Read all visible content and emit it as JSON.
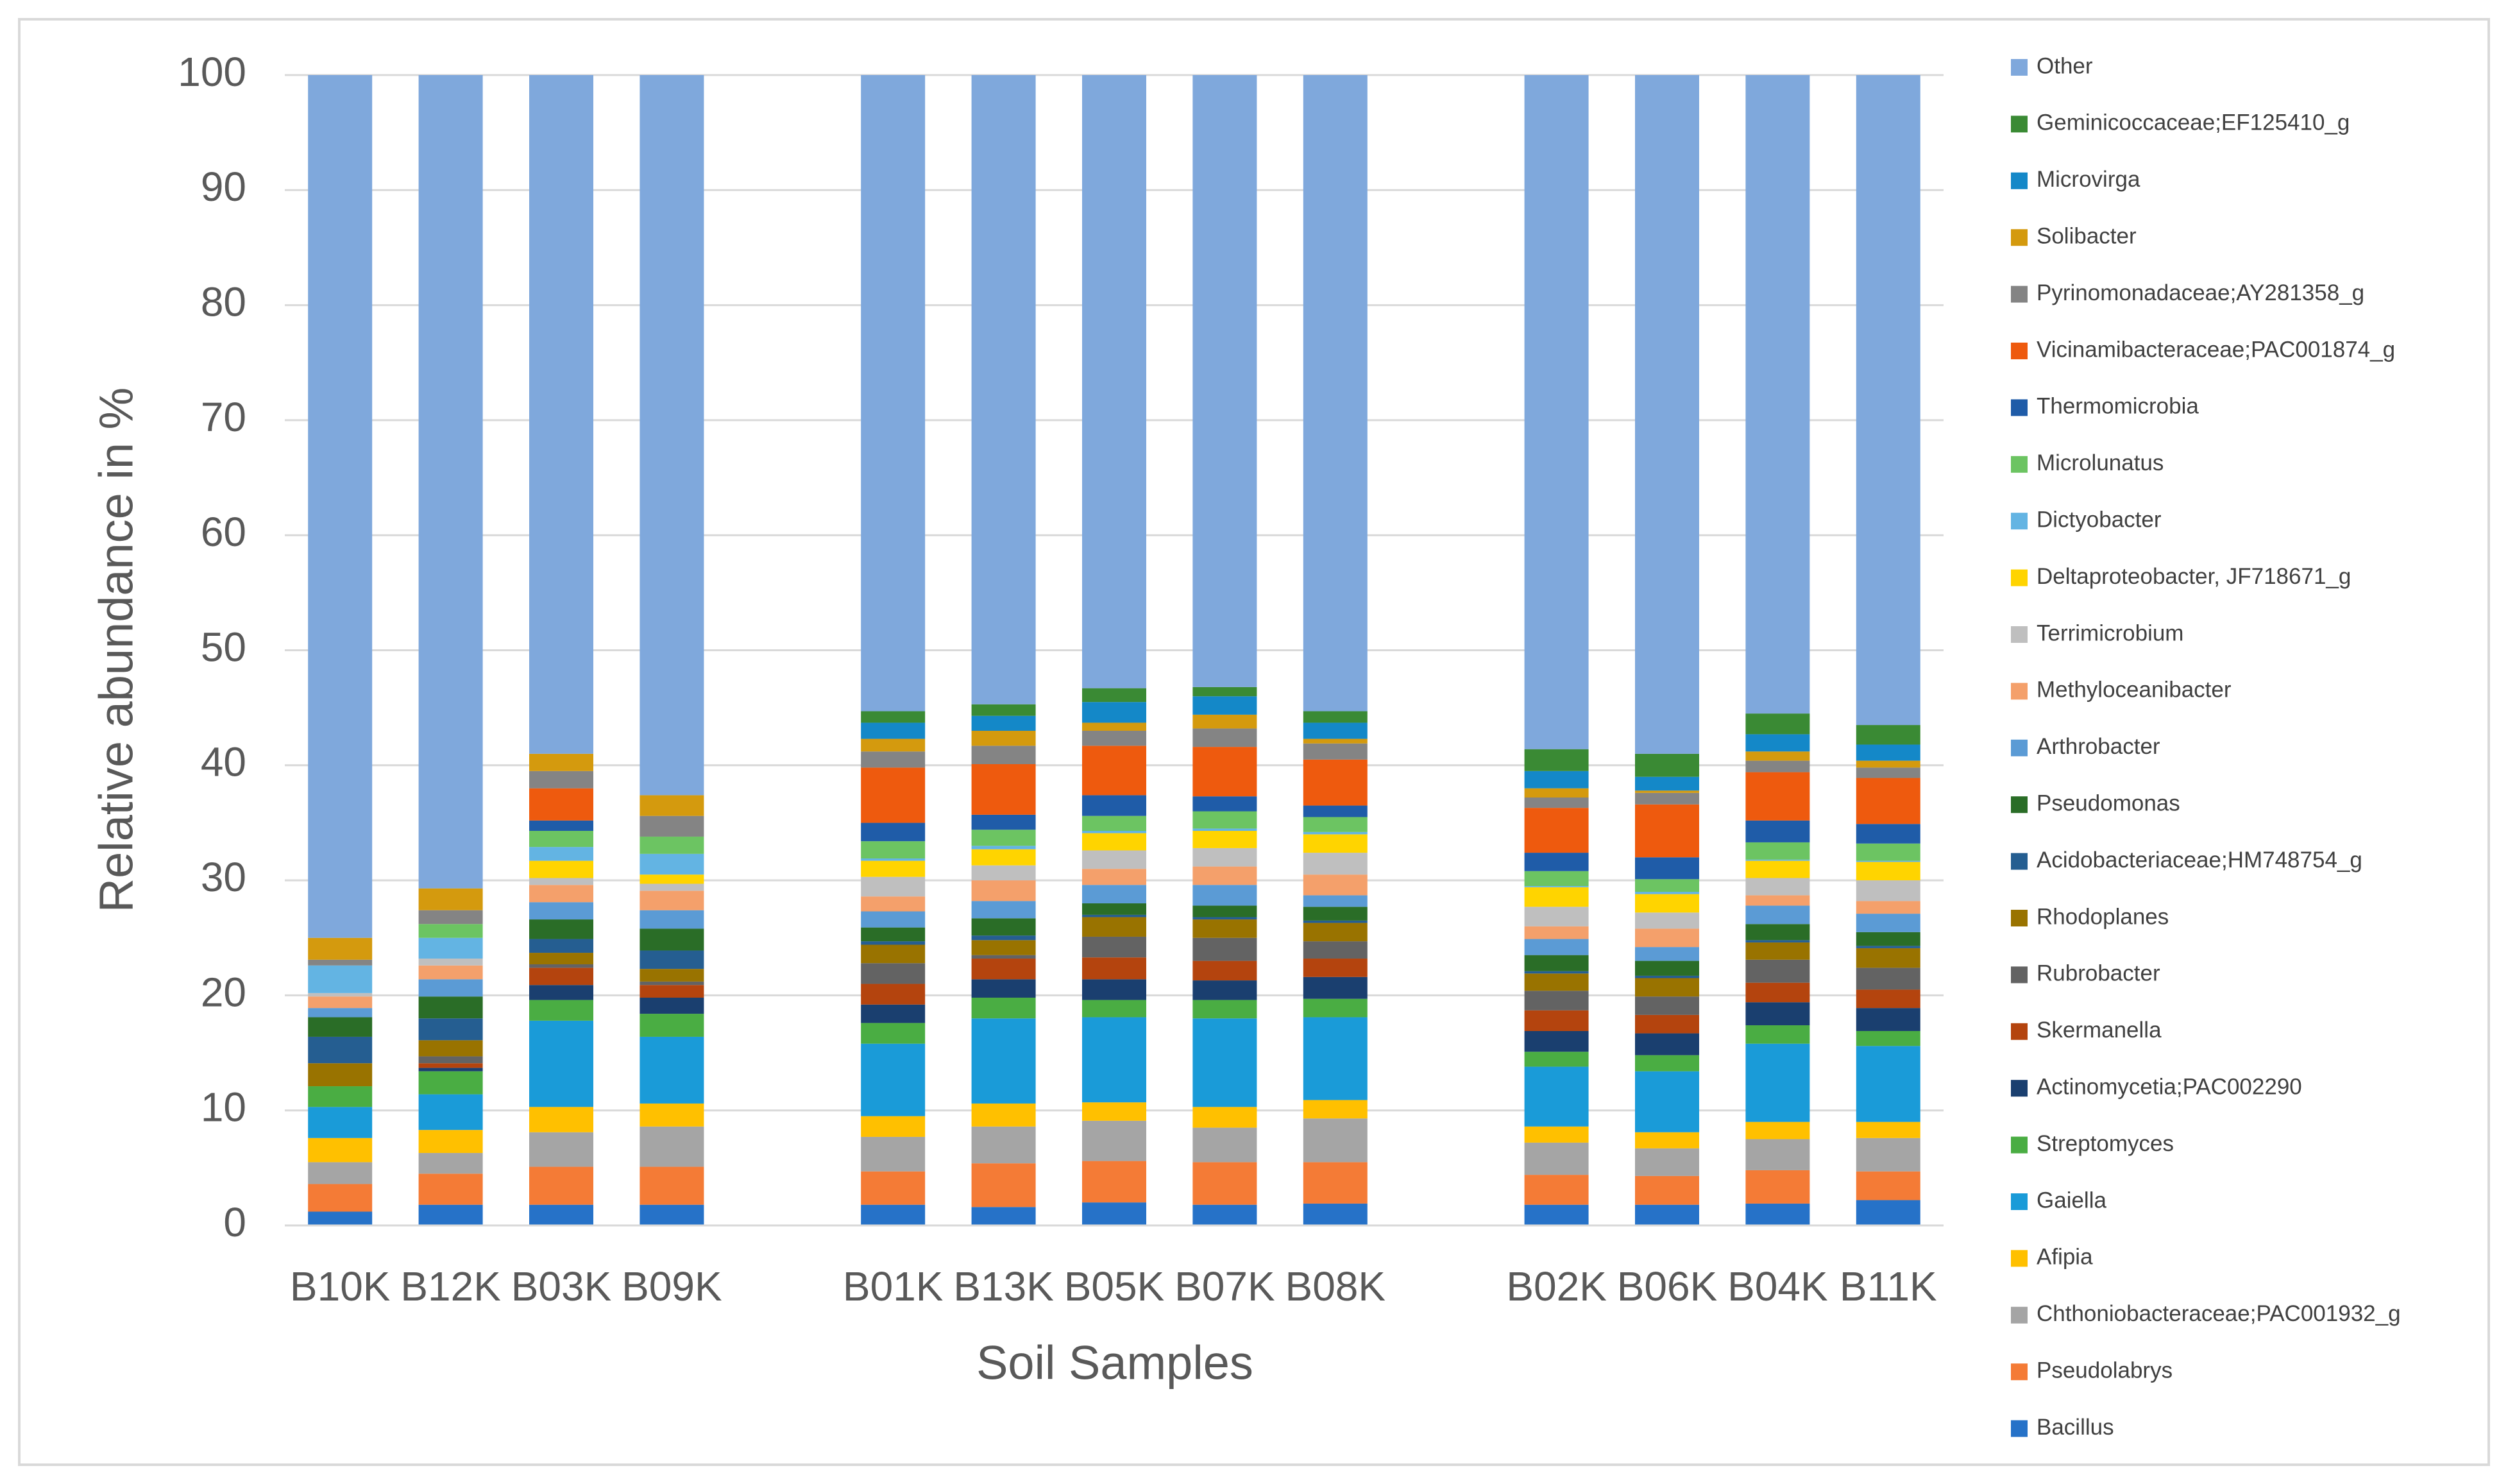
{
  "chart_data": {
    "type": "stacked_bar",
    "x_label": "Soil Samples",
    "y_label": "Relative abundance  in %",
    "categories": [
      "B10K",
      "B12K",
      "B03K",
      "B09K",
      null,
      "B01K",
      "B13K",
      "B05K",
      "B07K",
      "B08K",
      null,
      "B02K",
      "B06K",
      "B04K",
      "B11K"
    ],
    "ylim": [
      0,
      100
    ],
    "yticks": [
      0,
      10,
      20,
      30,
      40,
      50,
      60,
      70,
      80,
      90,
      100
    ],
    "grid": true,
    "legend": "right",
    "series": [
      {
        "name": "Bacillus",
        "color": "#2672c8",
        "values": [
          1.2,
          1.8,
          1.8,
          1.8,
          null,
          1.8,
          1.6,
          2.0,
          1.8,
          1.9,
          null,
          1.8,
          1.8,
          1.9,
          2.2
        ]
      },
      {
        "name": "Pseudolabrys",
        "color": "#f47b36",
        "values": [
          2.4,
          2.7,
          3.3,
          3.3,
          null,
          2.9,
          3.8,
          3.6,
          3.7,
          3.6,
          null,
          2.6,
          2.5,
          2.9,
          2.5
        ]
      },
      {
        "name": "Chthoniobacteraceae;PAC001932_g",
        "color": "#a5a5a5",
        "values": [
          1.9,
          1.8,
          3.0,
          3.5,
          null,
          3.0,
          3.2,
          3.5,
          3.0,
          3.8,
          null,
          2.8,
          2.4,
          2.7,
          2.9
        ]
      },
      {
        "name": "Afipia",
        "color": "#ffc000",
        "values": [
          2.1,
          2.0,
          2.2,
          2.0,
          null,
          1.8,
          2.0,
          1.6,
          1.8,
          1.6,
          null,
          1.4,
          1.4,
          1.5,
          1.4
        ]
      },
      {
        "name": "Gaiella",
        "color": "#1a9bd8",
        "values": [
          2.7,
          3.1,
          7.5,
          5.8,
          null,
          6.3,
          7.4,
          7.4,
          7.7,
          7.2,
          null,
          5.2,
          5.3,
          6.8,
          6.6
        ]
      },
      {
        "name": "Streptomyces",
        "color": "#4aad43",
        "values": [
          1.8,
          2.0,
          1.8,
          2.0,
          null,
          1.8,
          1.8,
          1.5,
          1.6,
          1.6,
          null,
          1.3,
          1.4,
          1.6,
          1.3
        ]
      },
      {
        "name": "Actinomycetia;PAC002290",
        "color": "#1a3f6f",
        "values": [
          0,
          0.3,
          1.3,
          1.4,
          null,
          1.6,
          1.6,
          1.8,
          1.7,
          1.9,
          null,
          1.8,
          1.9,
          2.0,
          2.0
        ]
      },
      {
        "name": "Skermanella",
        "color": "#b4440e",
        "values": [
          0,
          0.4,
          1.5,
          1.1,
          null,
          1.8,
          1.8,
          1.9,
          1.7,
          1.6,
          null,
          1.8,
          1.6,
          1.7,
          1.6
        ]
      },
      {
        "name": "Rubrobacter",
        "color": "#636363",
        "values": [
          0,
          0.6,
          0.3,
          0.3,
          null,
          1.8,
          0.3,
          1.8,
          2.0,
          1.5,
          null,
          1.7,
          1.6,
          2.0,
          1.9
        ]
      },
      {
        "name": "Rhodoplanes",
        "color": "#997300",
        "values": [
          2.0,
          1.4,
          1.0,
          1.1,
          null,
          1.6,
          1.3,
          1.7,
          1.6,
          1.6,
          null,
          1.5,
          1.6,
          1.5,
          1.7
        ]
      },
      {
        "name": "Acidobacteriaceae;HM748754_g",
        "color": "#255e91",
        "values": [
          2.3,
          1.9,
          1.2,
          1.6,
          null,
          0.3,
          0.4,
          0.2,
          0.2,
          0.2,
          null,
          0.2,
          0.2,
          0.2,
          0.2
        ]
      },
      {
        "name": "Pseudomonas",
        "color": "#2a6d27",
        "values": [
          1.7,
          1.9,
          1.7,
          1.9,
          null,
          1.2,
          1.5,
          1.0,
          1.0,
          1.2,
          null,
          1.4,
          1.3,
          1.4,
          1.2
        ]
      },
      {
        "name": "Arthrobacter",
        "color": "#5b9bd5",
        "values": [
          0.8,
          1.5,
          1.5,
          1.6,
          null,
          1.4,
          1.5,
          1.6,
          1.8,
          1.0,
          null,
          1.4,
          1.2,
          1.6,
          1.6
        ]
      },
      {
        "name": "Methyloceanibacter",
        "color": "#f4a06b",
        "values": [
          1.0,
          1.2,
          1.5,
          1.7,
          null,
          1.3,
          1.8,
          1.4,
          1.6,
          1.8,
          null,
          1.1,
          1.6,
          0.9,
          1.1
        ]
      },
      {
        "name": "Terrimicrobium",
        "color": "#bfbfbf",
        "values": [
          0.3,
          0.6,
          0.6,
          0.6,
          null,
          1.7,
          1.3,
          1.6,
          1.6,
          1.9,
          null,
          1.7,
          1.4,
          1.5,
          1.8
        ]
      },
      {
        "name": "Deltaproteobacter, JF718671_g",
        "color": "#ffd400",
        "values": [
          0,
          0,
          1.5,
          0.8,
          null,
          1.4,
          1.4,
          1.5,
          1.5,
          1.6,
          null,
          1.7,
          1.6,
          1.5,
          1.6
        ]
      },
      {
        "name": "Dictyobacter",
        "color": "#63b4e3",
        "values": [
          2.4,
          1.8,
          1.2,
          1.8,
          null,
          0.2,
          0.3,
          0.2,
          0.2,
          0.2,
          null,
          0.1,
          0.2,
          0.1,
          0.1
        ]
      },
      {
        "name": "Microlunatus",
        "color": "#6cc462",
        "values": [
          0,
          1.2,
          1.4,
          1.5,
          null,
          1.5,
          1.4,
          1.3,
          1.5,
          1.3,
          null,
          1.3,
          1.1,
          1.5,
          1.5
        ]
      },
      {
        "name": "Thermomicrobia",
        "color": "#1f5ca8",
        "values": [
          0,
          0,
          0.9,
          0,
          null,
          1.6,
          1.3,
          1.8,
          1.3,
          1.0,
          null,
          1.6,
          1.9,
          1.9,
          1.7
        ]
      },
      {
        "name": "Vicinamibacteraceae;PAC001874_g",
        "color": "#ee5a0e",
        "values": [
          0,
          0,
          2.8,
          0,
          null,
          4.8,
          4.4,
          4.3,
          4.3,
          4.0,
          null,
          3.9,
          4.6,
          4.2,
          4.0
        ]
      },
      {
        "name": "Pyrinomonadaceae;AY281358_g",
        "color": "#848484",
        "values": [
          0.5,
          1.2,
          1.5,
          1.8,
          null,
          1.4,
          1.6,
          1.3,
          1.6,
          1.4,
          null,
          0.9,
          1.0,
          1.0,
          0.9
        ]
      },
      {
        "name": "Solibacter",
        "color": "#d49a0e",
        "values": [
          1.9,
          1.9,
          1.5,
          1.8,
          null,
          1.1,
          1.3,
          0.7,
          1.2,
          0.4,
          null,
          0.8,
          0.2,
          0.8,
          0.6
        ]
      },
      {
        "name": "Microvirga",
        "color": "#1488c8",
        "values": [
          0,
          0,
          0,
          0,
          null,
          1.4,
          1.3,
          1.8,
          1.6,
          1.4,
          null,
          1.5,
          1.2,
          1.5,
          1.4
        ]
      },
      {
        "name": "Geminicoccaceae;EF125410_g",
        "color": "#3a8a34",
        "values": [
          0,
          0,
          0,
          0,
          null,
          1.0,
          1.0,
          1.2,
          0.8,
          1.0,
          null,
          1.9,
          2.0,
          1.8,
          1.7
        ]
      },
      {
        "name": "Other",
        "color": "#7fa8dc",
        "values": [
          75.0,
          70.7,
          59.0,
          62.6,
          null,
          55.3,
          54.7,
          53.3,
          53.2,
          55.3,
          null,
          58.6,
          59.0,
          55.5,
          56.5
        ]
      }
    ]
  }
}
